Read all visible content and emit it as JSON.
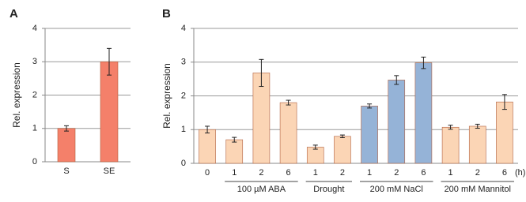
{
  "chart_data": [
    {
      "type": "bar",
      "panel": "A",
      "y_label": "Rel. expression",
      "categories": [
        "S",
        "SE"
      ],
      "values": [
        1.0,
        3.0
      ],
      "errors": [
        0.08,
        0.4
      ],
      "color": "#f4806a",
      "ylim": [
        0,
        4
      ],
      "yticks": [
        0,
        1,
        2,
        3,
        4
      ],
      "grid": true
    },
    {
      "type": "bar",
      "panel": "B",
      "y_label": "Rel. expression",
      "x_unit": "(h)",
      "categories": [
        {
          "label": "0",
          "group": null
        },
        {
          "label": "1",
          "group": "100 µM ABA"
        },
        {
          "label": "2",
          "group": "100 µM ABA"
        },
        {
          "label": "6",
          "group": "100 µM ABA"
        },
        {
          "label": "1",
          "group": "Drought"
        },
        {
          "label": "2",
          "group": "Drought"
        },
        {
          "label": "1",
          "group": "200 mM NaCl"
        },
        {
          "label": "2",
          "group": "200 mM NaCl"
        },
        {
          "label": "6",
          "group": "200 mM NaCl"
        },
        {
          "label": "1",
          "group": "200 mM Mannitol"
        },
        {
          "label": "2",
          "group": "200 mM Mannitol"
        },
        {
          "label": "6",
          "group": "200 mM Mannitol"
        }
      ],
      "values": [
        1.0,
        0.7,
        2.68,
        1.8,
        0.48,
        0.8,
        1.7,
        2.47,
        2.98,
        1.07,
        1.1,
        1.82
      ],
      "errors": [
        0.1,
        0.07,
        0.4,
        0.07,
        0.06,
        0.04,
        0.06,
        0.13,
        0.17,
        0.06,
        0.06,
        0.22
      ],
      "colors": [
        "#fbd5b5",
        "#fbd5b5",
        "#fbd5b5",
        "#fbd5b5",
        "#fbd5b5",
        "#fbd5b5",
        "#95b3d7",
        "#95b3d7",
        "#95b3d7",
        "#fbd5b5",
        "#fbd5b5",
        "#fbd5b5"
      ],
      "ylim": [
        0,
        4
      ],
      "yticks": [
        0,
        1,
        2,
        3,
        4
      ],
      "grid": true
    }
  ]
}
